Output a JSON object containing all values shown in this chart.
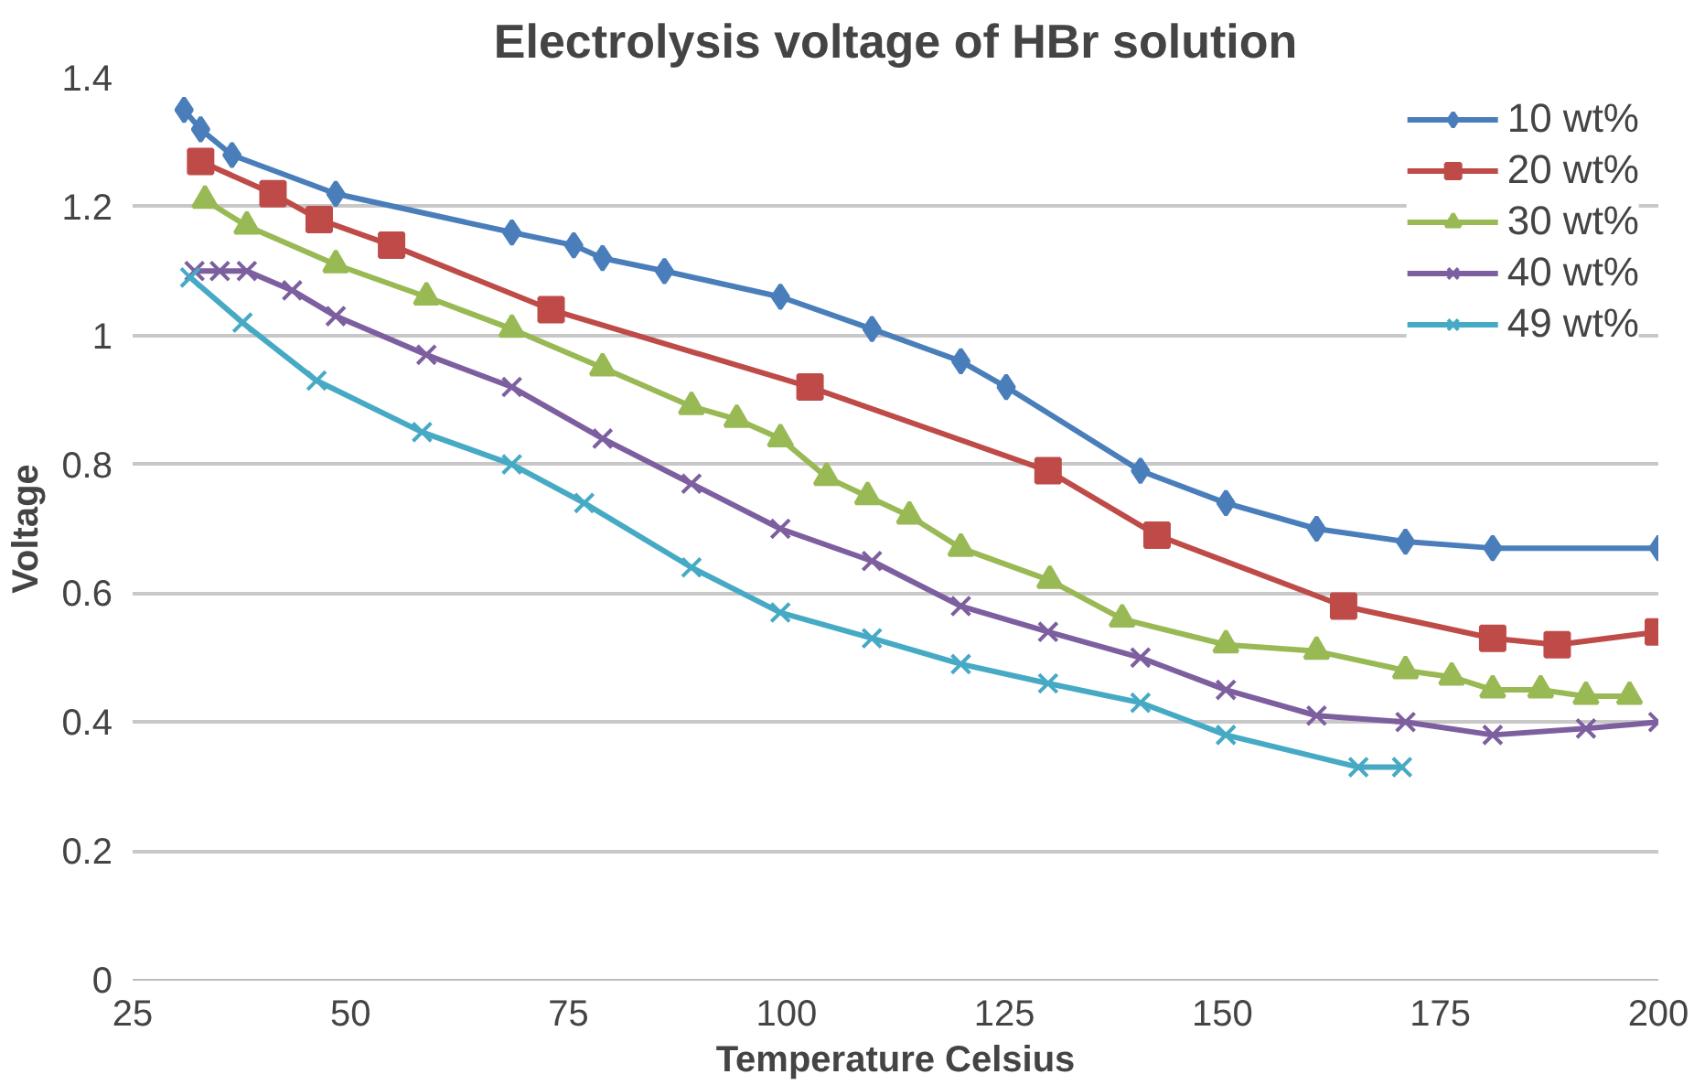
{
  "chart_data": {
    "type": "line",
    "title": "Electrolysis voltage of HBr solution",
    "xlabel": "Temperature Celsius",
    "ylabel": "Voltage",
    "xlim": [
      25,
      200
    ],
    "xticks": [
      25,
      50,
      75,
      100,
      125,
      150,
      175,
      200
    ],
    "ylim": [
      0,
      1.4
    ],
    "yticks": [
      0,
      0.2,
      0.4,
      0.6,
      0.8,
      1,
      1.2,
      1.4
    ],
    "grid": "y",
    "legend": "top right",
    "line_style": "solid",
    "series": [
      {
        "name": "10 wt%",
        "color": "#4a7ebb",
        "marker": "diamond",
        "x": [
          30.9,
          32.8,
          36.4,
          48.3,
          68.5,
          75.6,
          78.9,
          86.0,
          99.3,
          109.8,
          120.0,
          125.2,
          140.6,
          150.4,
          160.8,
          171.0,
          181.0,
          200.0
        ],
        "values": [
          1.35,
          1.32,
          1.28,
          1.22,
          1.16,
          1.14,
          1.12,
          1.1,
          1.06,
          1.01,
          0.96,
          0.92,
          0.79,
          0.74,
          0.7,
          0.68,
          0.67,
          0.67
        ]
      },
      {
        "name": "20 wt%",
        "color": "#be4b48",
        "marker": "square",
        "x": [
          32.8,
          41.1,
          46.4,
          54.7,
          73.0,
          102.7,
          130.0,
          142.5,
          163.9,
          181.0,
          188.4,
          200.0
        ],
        "values": [
          1.27,
          1.22,
          1.18,
          1.14,
          1.04,
          0.92,
          0.79,
          0.69,
          0.58,
          0.53,
          0.52,
          0.54
        ]
      },
      {
        "name": "30 wt%",
        "color": "#98b954",
        "marker": "triangle",
        "x": [
          33.3,
          38.1,
          48.3,
          58.7,
          68.5,
          78.9,
          89.1,
          94.3,
          99.3,
          104.6,
          109.3,
          114.1,
          120.0,
          130.2,
          138.5,
          150.4,
          160.8,
          171.0,
          176.3,
          181.0,
          186.5,
          191.7,
          196.7
        ],
        "values": [
          1.21,
          1.17,
          1.11,
          1.06,
          1.01,
          0.95,
          0.89,
          0.87,
          0.84,
          0.78,
          0.75,
          0.72,
          0.67,
          0.62,
          0.56,
          0.52,
          0.51,
          0.48,
          0.47,
          0.45,
          0.45,
          0.44,
          0.44
        ]
      },
      {
        "name": "40 wt%",
        "color": "#7d5fa0",
        "marker": "cross",
        "x": [
          32.1,
          35.0,
          38.1,
          43.3,
          48.3,
          58.7,
          68.5,
          78.9,
          89.1,
          99.3,
          109.8,
          120.0,
          130.0,
          140.6,
          150.4,
          160.8,
          171.0,
          181.0,
          191.7,
          200.0
        ],
        "values": [
          1.1,
          1.1,
          1.1,
          1.07,
          1.03,
          0.97,
          0.92,
          0.84,
          0.77,
          0.7,
          0.65,
          0.58,
          0.54,
          0.5,
          0.45,
          0.41,
          0.4,
          0.38,
          0.39,
          0.4
        ]
      },
      {
        "name": "49 wt%",
        "color": "#46aac5",
        "marker": "cross",
        "x": [
          31.6,
          37.6,
          46.1,
          58.2,
          68.5,
          76.8,
          89.1,
          99.3,
          109.8,
          120.0,
          130.0,
          140.6,
          150.4,
          165.6,
          170.6
        ],
        "values": [
          1.09,
          1.02,
          0.93,
          0.85,
          0.8,
          0.74,
          0.64,
          0.57,
          0.53,
          0.49,
          0.46,
          0.43,
          0.38,
          0.33,
          0.33
        ]
      }
    ]
  }
}
